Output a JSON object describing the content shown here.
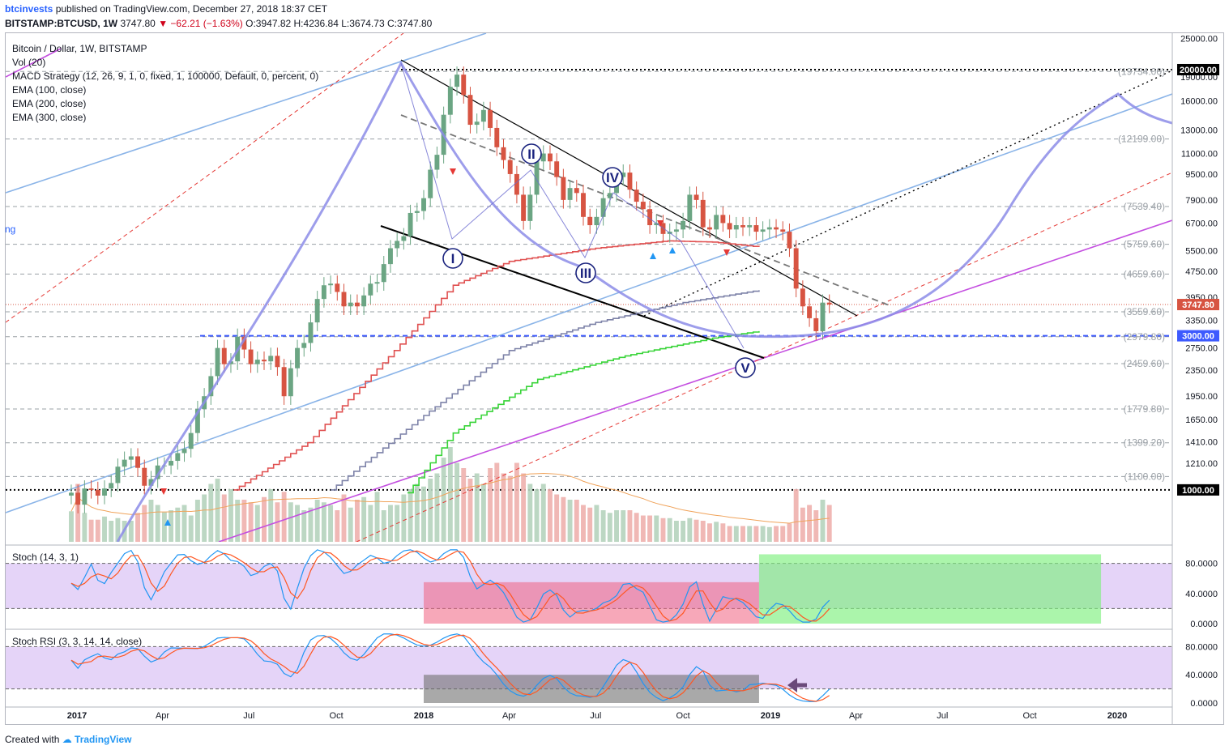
{
  "header": {
    "user": "btcinvests",
    "published": " published on TradingView.com, December 27, 2018 18:37 CET",
    "symbol": "BITSTAMP:BTCUSD, 1W",
    "price": "3747.80",
    "change": "▼ −62.21 (−1.63%)",
    "ohlc": "O:3947.82 H:4236.84 L:3674.73 C:3747.80"
  },
  "legend": [
    "Bitcoin / Dollar, 1W, BITSTAMP",
    "Vol (20)",
    "MACD Strategy (12, 26, 9, 1, 0, fixed, 1, 100000, Default, 0, percent, 0)",
    "EMA (100, close)",
    "EMA (200, close)",
    "EMA (300, close)"
  ],
  "left_fragment": "ng",
  "stoch_title": "Stoch (14, 3, 1)",
  "stochrsi_title": "Stoch RSI (3, 3, 14, 14, close)",
  "footer": {
    "created": "Created with ",
    "brand": "TradingView"
  },
  "colors": {
    "up": "#6ba583",
    "down": "#d75442",
    "ema100": "#e05050",
    "ema200": "#7d82a8",
    "ema300": "#38d438",
    "arc": "#8c8ce8",
    "magenta": "#c44fe0",
    "lightblue": "#8ab4e8",
    "support": "#3d5afe",
    "stochK": "#2196f3",
    "stochD": "#ff5722"
  },
  "chart_data": [
    {
      "type": "candlestick",
      "title": "Bitcoin / Dollar, 1W, BITSTAMP",
      "y_scale": "log",
      "ylim": [
        950,
        26000
      ],
      "x_ticks": [
        "2017",
        "Apr",
        "Jul",
        "Oct",
        "2018",
        "Apr",
        "Jul",
        "Oct",
        "2019",
        "Apr",
        "Jul",
        "Oct",
        "2020"
      ],
      "y_ticks": [
        25000,
        19000,
        16000,
        13000,
        11000,
        9500,
        7900,
        6700,
        5500,
        4750,
        3950,
        3350,
        2750,
        2350,
        1950,
        1650,
        1410,
        1210
      ],
      "y_tick_labels": [
        "25000.00",
        "19000.00",
        "16000.00",
        "13000.00",
        "11000.00",
        "9500.00",
        "7900.00",
        "6700.00",
        "5500.00",
        "4750.00",
        "3950.00",
        "3350.00",
        "2750.00",
        "2350.00",
        "1950.00",
        "1650.00",
        "1410.00",
        "1210.00"
      ],
      "level_labels": [
        {
          "value": 19734,
          "text": "(19734.00)"
        },
        {
          "value": 12199,
          "text": "(12199.00)"
        },
        {
          "value": 7539.4,
          "text": "(7539.40)"
        },
        {
          "value": 5759.6,
          "text": "(5759.60)"
        },
        {
          "value": 4659.6,
          "text": "(4659.60)"
        },
        {
          "value": 3559.6,
          "text": "(3559.60)"
        },
        {
          "value": 2979.8,
          "text": "(2979.80)"
        },
        {
          "value": 2459.6,
          "text": "(2459.60)"
        },
        {
          "value": 1779.8,
          "text": "(1779.80)"
        },
        {
          "value": 1399.2,
          "text": "(1399.20)"
        },
        {
          "value": 1100,
          "text": "(1100.00)"
        }
      ],
      "price_badges": [
        {
          "value": 20000,
          "text": "20000.00",
          "color": "#000000"
        },
        {
          "value": 3747.8,
          "text": "3747.80",
          "color": "#d75442"
        },
        {
          "value": 3000,
          "text": "3000.00",
          "color": "#3d5afe"
        },
        {
          "value": 1000,
          "text": "1000.00",
          "color": "#000000"
        }
      ],
      "wave_labels": [
        "I",
        "II",
        "III",
        "IV",
        "V"
      ],
      "candles_weekly_close": [
        980,
        900,
        1010,
        1000,
        960,
        1010,
        1050,
        1180,
        1240,
        1270,
        1170,
        1030,
        1080,
        1190,
        1190,
        1230,
        1300,
        1340,
        1500,
        1780,
        1950,
        2250,
        2750,
        2450,
        2500,
        2980,
        2720,
        2450,
        2530,
        2500,
        2600,
        2400,
        1950,
        2380,
        2750,
        2850,
        3300,
        3900,
        4300,
        4350,
        4100,
        3700,
        3800,
        3700,
        4000,
        4350,
        4400,
        5000,
        5600,
        5900,
        6100,
        7200,
        7300,
        8000,
        9800,
        10900,
        14500,
        17700,
        19300,
        16700,
        13500,
        13800,
        15000,
        13200,
        11500,
        10500,
        9500,
        8200,
        6800,
        8200,
        10400,
        11000,
        10400,
        9300,
        7900,
        8600,
        8300,
        7000,
        6600,
        7000,
        8000,
        8300,
        9300,
        9600,
        8500,
        7800,
        7400,
        6600,
        6700,
        6200,
        6300,
        6400,
        6800,
        8200,
        7900,
        6500,
        6400,
        7100,
        6700,
        6400,
        6600,
        6500,
        6600,
        6300,
        6400,
        6500,
        6400,
        6300,
        5600,
        4200,
        3700,
        3400,
        3100,
        3800,
        3750
      ],
      "candles_start": "2016-12-26",
      "volume_weekly": [
        58,
        110,
        55,
        42,
        42,
        48,
        40,
        45,
        40,
        40,
        55,
        70,
        80,
        70,
        56,
        60,
        65,
        70,
        50,
        80,
        90,
        110,
        120,
        90,
        100,
        80,
        80,
        75,
        70,
        85,
        100,
        75,
        95,
        75,
        70,
        60,
        65,
        80,
        75,
        70,
        60,
        90,
        65,
        80,
        85,
        70,
        95,
        60,
        70,
        70,
        90,
        100,
        110,
        105,
        120,
        130,
        160,
        180,
        150,
        140,
        120,
        130,
        110,
        140,
        150,
        130,
        125,
        150,
        130,
        110,
        100,
        110,
        100,
        90,
        85,
        80,
        80,
        70,
        65,
        70,
        60,
        55,
        60,
        60,
        60,
        55,
        50,
        50,
        50,
        45,
        45,
        40,
        40,
        45,
        42,
        40,
        35,
        38,
        35,
        30,
        30,
        30,
        30,
        30,
        30,
        28,
        30,
        30,
        35,
        100,
        65,
        70,
        60,
        80,
        70
      ],
      "ema100_approx": [
        {
          "x": "2017-06-01",
          "y": 980
        },
        {
          "x": "2017-09-01",
          "y": 1400
        },
        {
          "x": "2017-12-01",
          "y": 2700
        },
        {
          "x": "2018-02-01",
          "y": 4300
        },
        {
          "x": "2018-04-01",
          "y": 5100
        },
        {
          "x": "2018-07-01",
          "y": 5600
        },
        {
          "x": "2018-09-15",
          "y": 5900
        },
        {
          "x": "2018-11-01",
          "y": 5850
        },
        {
          "x": "2018-12-20",
          "y": 5650
        }
      ],
      "ema200_approx": [
        {
          "x": "2017-09-15",
          "y": 980
        },
        {
          "x": "2018-01-01",
          "y": 1700
        },
        {
          "x": "2018-04-01",
          "y": 2700
        },
        {
          "x": "2018-07-01",
          "y": 3300
        },
        {
          "x": "2018-10-01",
          "y": 3800
        },
        {
          "x": "2018-12-20",
          "y": 4150
        }
      ],
      "ema300_approx": [
        {
          "x": "2017-12-01",
          "y": 950
        },
        {
          "x": "2018-02-01",
          "y": 1500
        },
        {
          "x": "2018-05-01",
          "y": 2200
        },
        {
          "x": "2018-08-01",
          "y": 2600
        },
        {
          "x": "2018-11-01",
          "y": 2950
        },
        {
          "x": "2018-12-20",
          "y": 3100
        }
      ]
    },
    {
      "type": "line",
      "title": "Stoch (14, 3, 1)",
      "ylim": [
        0,
        100
      ],
      "y_tick_labels": [
        "80.0000",
        "40.0000",
        "0.0000"
      ],
      "y_ticks": [
        80,
        40,
        0
      ],
      "bands": [
        20,
        80
      ]
    },
    {
      "type": "line",
      "title": "Stoch RSI (3, 3, 14, 14, close)",
      "ylim": [
        0,
        100
      ],
      "y_tick_labels": [
        "80.0000",
        "40.0000",
        "0.0000"
      ],
      "y_ticks": [
        80,
        40,
        0
      ],
      "bands": [
        20,
        80
      ]
    }
  ]
}
